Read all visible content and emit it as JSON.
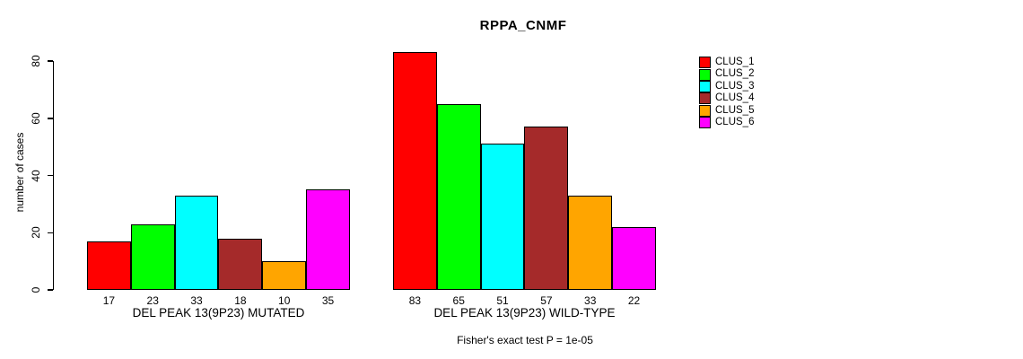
{
  "chart_data": {
    "type": "bar",
    "title": "RPPA_CNMF",
    "ylabel": "number of cases",
    "xlabel": "",
    "footer": "Fisher's exact test P = 1e-05",
    "categories": [
      "DEL PEAK 13(9P23) MUTATED",
      "DEL PEAK 13(9P23) WILD-TYPE"
    ],
    "groups": [
      {
        "label": "DEL PEAK 13(9P23) MUTATED",
        "values": [
          17,
          23,
          33,
          18,
          10,
          35
        ]
      },
      {
        "label": "DEL PEAK 13(9P23) WILD-TYPE",
        "values": [
          83,
          65,
          51,
          57,
          33,
          22
        ]
      }
    ],
    "series": [
      {
        "name": "CLUS_1",
        "color": "#FF0000",
        "values": [
          17,
          83
        ]
      },
      {
        "name": "CLUS_2",
        "color": "#00FF00",
        "values": [
          23,
          65
        ]
      },
      {
        "name": "CLUS_3",
        "color": "#00FFFF",
        "values": [
          33,
          51
        ]
      },
      {
        "name": "CLUS_4",
        "color": "#A52A2A",
        "values": [
          18,
          57
        ]
      },
      {
        "name": "CLUS_5",
        "color": "#FFA500",
        "values": [
          10,
          33
        ]
      },
      {
        "name": "CLUS_6",
        "color": "#FF00FF",
        "values": [
          35,
          22
        ]
      }
    ],
    "yticks": [
      0,
      20,
      40,
      60,
      80
    ],
    "ylim": [
      0,
      85
    ],
    "bar_value_labels_shown": true,
    "grid": false,
    "legend_position": "right",
    "background_color": "#FFFFFF",
    "text_color": "#000000",
    "axis_color": "#000000"
  }
}
